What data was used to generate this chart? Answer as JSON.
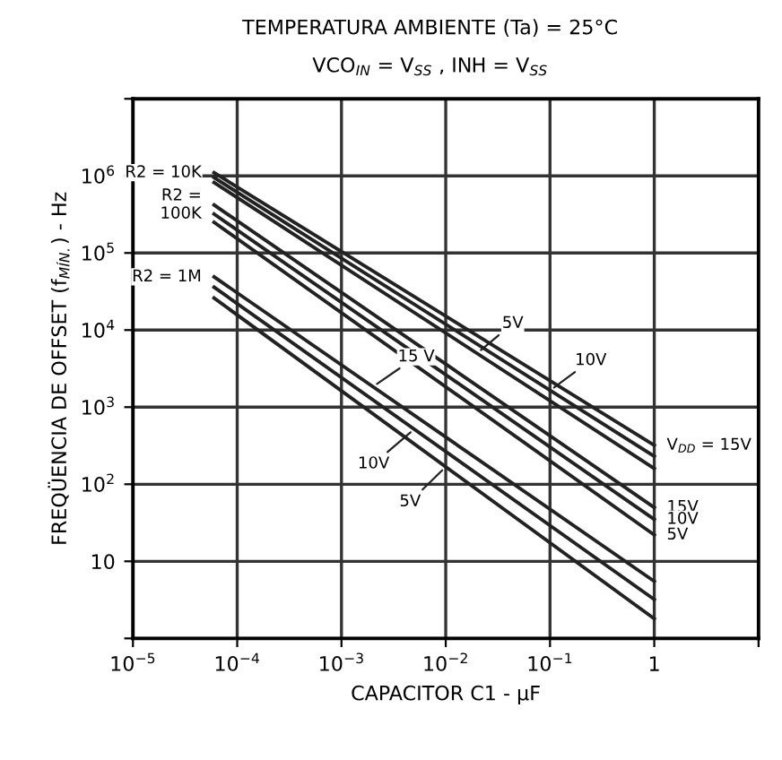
{
  "chart_data": {
    "type": "line",
    "title": "TEMPERATURA AMBIENTE (Ta) = 25°C",
    "subtitle": "VCO$_{IN}$ = V$_{SS}$ , INH = V$_{SS}$",
    "xlabel": "CAPACITOR C1 - µF",
    "ylabel": "FREQÜENCIA DE OFFSET (f$_{MÍN.}$) - Hz",
    "log": "xy",
    "grid": true,
    "marker": "none",
    "line_style": "solid",
    "xlim": [
      1e-05,
      10
    ],
    "ylim": [
      1,
      10000000
    ],
    "xticks": [
      {
        "value": 1e-05,
        "label": "10$^{−5}$"
      },
      {
        "value": 0.0001,
        "label": "10$^{−4}$"
      },
      {
        "value": 0.001,
        "label": "10$^{−3}$"
      },
      {
        "value": 0.01,
        "label": "10$^{−2}$"
      },
      {
        "value": 0.1,
        "label": "10$^{−1}$"
      },
      {
        "value": 1,
        "label": "1"
      },
      {
        "value": 10,
        "label": null
      }
    ],
    "yticks": [
      {
        "value": 1,
        "label": null
      },
      10,
      {
        "value": 100,
        "label": "10$^{2}$"
      },
      {
        "value": 1000,
        "label": "10$^{3}$"
      },
      {
        "value": 10000,
        "label": "10$^{4}$"
      },
      {
        "value": 100000,
        "label": "10$^{5}$"
      },
      {
        "value": 1000000,
        "label": "10$^{6}$"
      },
      {
        "value": 10000000,
        "label": null
      }
    ],
    "x": [
      6e-05,
      1
    ],
    "series": [
      {
        "color": "#222222",
        "values": [
          1100000,
          320
        ]
      },
      {
        "color": "#222222",
        "values": [
          950000,
          230
        ]
      },
      {
        "color": "#222222",
        "values": [
          820000,
          160
        ]
      },
      {
        "color": "#222222",
        "values": [
          420000,
          50
        ]
      },
      {
        "color": "#222222",
        "values": [
          320000,
          35
        ]
      },
      {
        "color": "#222222",
        "values": [
          250000,
          22
        ]
      },
      {
        "color": "#222222",
        "values": [
          49000,
          5.5
        ]
      },
      {
        "color": "#222222",
        "values": [
          36000,
          3.2
        ]
      },
      {
        "color": "#222222",
        "values": [
          26000,
          1.8
        ]
      }
    ],
    "annotations": [
      {
        "text": "R2 = 10K",
        "x": 6e-05,
        "y": 1100000
      },
      {
        "text": "R2 =\n100K",
        "x": 6e-05,
        "y": 420000
      },
      {
        "text": "R2 = 1M",
        "x": 6e-05,
        "y": 49000
      },
      {
        "text": "5V",
        "x": 0.02,
        "y": 5000
      },
      {
        "text": "10V",
        "x": 0.1,
        "y": 1650
      },
      {
        "text": "V$_{DD}$ = 15V",
        "x": 1,
        "y": 320
      },
      {
        "text": "15 V",
        "x": 0.002,
        "y": 1840
      },
      {
        "text": "10V",
        "x": 0.005,
        "y": 520
      },
      {
        "text": "5V",
        "x": 0.01,
        "y": 168
      },
      {
        "text": "15V",
        "x": 1,
        "y": 50
      },
      {
        "text": "10V",
        "x": 1,
        "y": 35
      },
      {
        "text": "5V",
        "x": 1,
        "y": 22
      }
    ]
  }
}
